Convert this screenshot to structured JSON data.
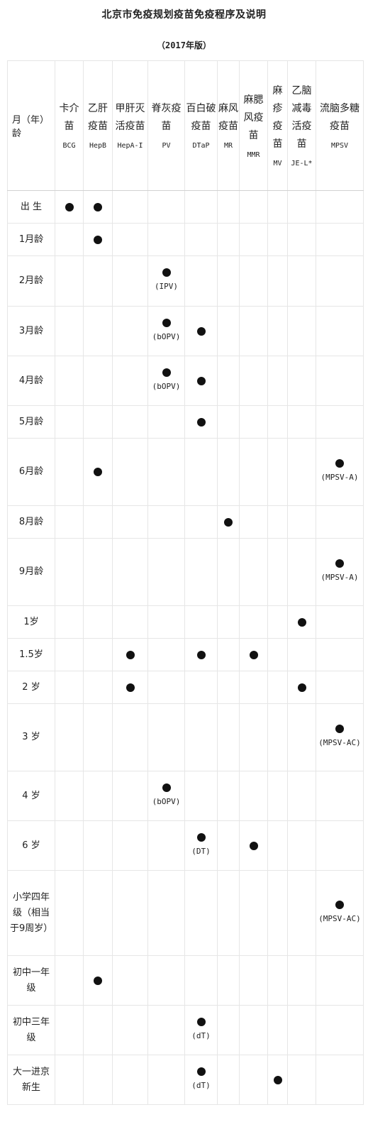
{
  "page": {
    "title": "北京市免疫规划疫苗免疫程序及说明",
    "subtitle": "（2017年版）"
  },
  "table": {
    "month_header": "月（年）龄",
    "vaccines": [
      {
        "name": "卡介苗",
        "abbr": "BCG"
      },
      {
        "name": "乙肝疫苗",
        "abbr": "HepB"
      },
      {
        "name": "甲肝灭活疫苗",
        "abbr": "HepA-I"
      },
      {
        "name": "脊灰疫苗",
        "abbr": "PV"
      },
      {
        "name": "百白破疫苗",
        "abbr": "DTaP"
      },
      {
        "name": "麻风疫苗",
        "abbr": "MR"
      },
      {
        "name": "麻腮风疫苗",
        "abbr": "MMR"
      },
      {
        "name": "麻疹疫苗",
        "abbr": "MV"
      },
      {
        "name": "乙脑减毒活疫苗",
        "abbr": "JE-L*"
      },
      {
        "name": "流脑多糖疫苗",
        "abbr": "MPSV"
      }
    ],
    "rows": [
      {
        "age": "出 生",
        "doses": [
          {
            "col": 0
          },
          {
            "col": 1
          }
        ]
      },
      {
        "age": "1月龄",
        "doses": [
          {
            "col": 1
          }
        ]
      },
      {
        "age": "2月龄",
        "doses": [
          {
            "col": 3,
            "note": "(IPV)"
          }
        ]
      },
      {
        "age": "3月龄",
        "doses": [
          {
            "col": 3,
            "note": "(bOPV)"
          },
          {
            "col": 4
          }
        ]
      },
      {
        "age": "4月龄",
        "doses": [
          {
            "col": 3,
            "note": "(bOPV)"
          },
          {
            "col": 4
          }
        ]
      },
      {
        "age": "5月龄",
        "doses": [
          {
            "col": 4
          }
        ]
      },
      {
        "age": "6月龄",
        "doses": [
          {
            "col": 1
          },
          {
            "col": 9,
            "note": "(MPSV-A)"
          }
        ]
      },
      {
        "age": "8月龄",
        "doses": [
          {
            "col": 5
          }
        ]
      },
      {
        "age": "9月龄",
        "doses": [
          {
            "col": 9,
            "note": "(MPSV-A)"
          }
        ]
      },
      {
        "age": "1岁",
        "doses": [
          {
            "col": 8
          }
        ]
      },
      {
        "age": "1.5岁",
        "doses": [
          {
            "col": 2
          },
          {
            "col": 4
          },
          {
            "col": 6
          }
        ]
      },
      {
        "age": "2 岁",
        "doses": [
          {
            "col": 2
          },
          {
            "col": 8
          }
        ]
      },
      {
        "age": "3 岁",
        "doses": [
          {
            "col": 9,
            "note": "(MPSV-AC)"
          }
        ]
      },
      {
        "age": "4 岁",
        "doses": [
          {
            "col": 3,
            "note": "(bOPV)"
          }
        ]
      },
      {
        "age": "6 岁",
        "doses": [
          {
            "col": 4,
            "note": "(DT)"
          },
          {
            "col": 6
          }
        ]
      },
      {
        "age": "小学四年级（相当于9周岁）",
        "doses": [
          {
            "col": 9,
            "note": "(MPSV-AC)"
          }
        ]
      },
      {
        "age": "初中一年级",
        "doses": [
          {
            "col": 1
          }
        ]
      },
      {
        "age": "初中三年级",
        "doses": [
          {
            "col": 4,
            "note": "(dT)"
          }
        ]
      },
      {
        "age": "大一进京新生",
        "doses": [
          {
            "col": 4,
            "note": "(dT)"
          },
          {
            "col": 7
          }
        ]
      }
    ]
  }
}
